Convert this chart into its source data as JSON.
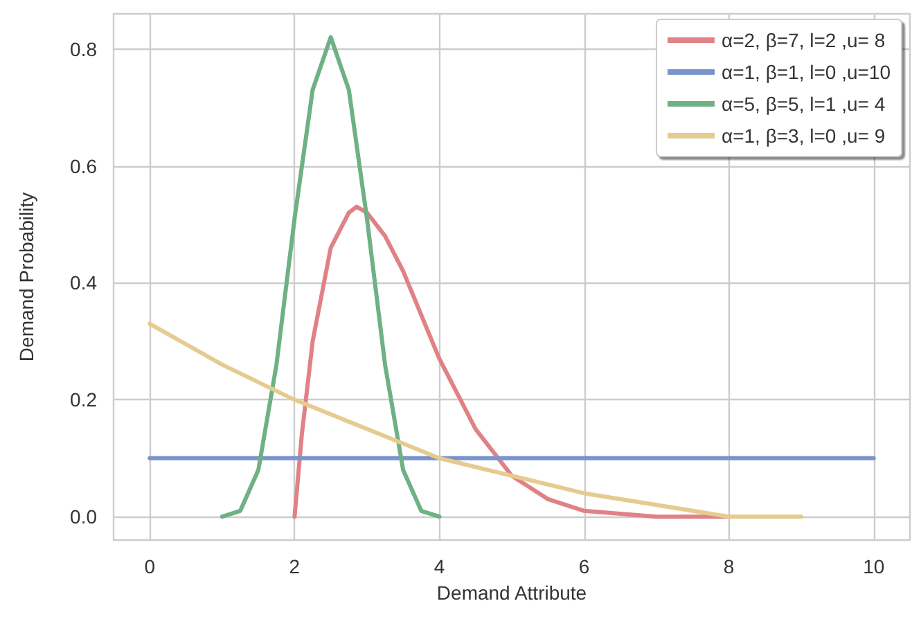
{
  "chart_data": {
    "type": "line",
    "xlabel": "Demand Attribute",
    "ylabel": "Demand Probability",
    "xlim": [
      -0.5,
      10.5
    ],
    "ylim": [
      -0.04,
      0.86
    ],
    "xticks": [
      0,
      2,
      4,
      6,
      8,
      10
    ],
    "yticks": [
      {
        "value": 0,
        "label": "0.0"
      },
      {
        "value": 0.2,
        "label": "0.2"
      },
      {
        "value": 0.4,
        "label": "0.4"
      },
      {
        "value": 0.6,
        "label": "0.6"
      },
      {
        "value": 0.8,
        "label": "0.8"
      }
    ],
    "grid": true,
    "legend": "top right",
    "marker": "none",
    "line_style": "solid",
    "series": [
      {
        "name": "α=2, β=7, l=2 ,u= 8",
        "color": "#e08285",
        "x": [
          2,
          2.1,
          2.25,
          2.5,
          2.75,
          2.857,
          3,
          3.25,
          3.5,
          4,
          4.5,
          5,
          5.5,
          6,
          7,
          8
        ],
        "values": [
          0,
          0.14,
          0.3,
          0.46,
          0.52,
          0.53,
          0.52,
          0.48,
          0.42,
          0.27,
          0.15,
          0.07,
          0.03,
          0.01,
          0,
          0
        ]
      },
      {
        "name": "α=1, β=1, l=0 ,u=10",
        "color": "#7b93cc",
        "x": [
          0,
          10
        ],
        "values": [
          0.1,
          0.1
        ]
      },
      {
        "name": "α=5, β=5, l=1 ,u= 4",
        "color": "#6fb185",
        "x": [
          1,
          1.25,
          1.5,
          1.75,
          2,
          2.25,
          2.5,
          2.75,
          3,
          3.25,
          3.5,
          3.75,
          4
        ],
        "values": [
          0,
          0.01,
          0.08,
          0.26,
          0.51,
          0.73,
          0.82,
          0.73,
          0.51,
          0.26,
          0.08,
          0.01,
          0
        ]
      },
      {
        "name": "α=1, β=3, l=0 ,u= 9",
        "color": "#e6cb91",
        "x": [
          0,
          1,
          2,
          3,
          4,
          5,
          6,
          7,
          8,
          9
        ],
        "values": [
          0.33,
          0.26,
          0.2,
          0.15,
          0.1,
          0.07,
          0.04,
          0.02,
          0,
          0
        ]
      }
    ]
  }
}
